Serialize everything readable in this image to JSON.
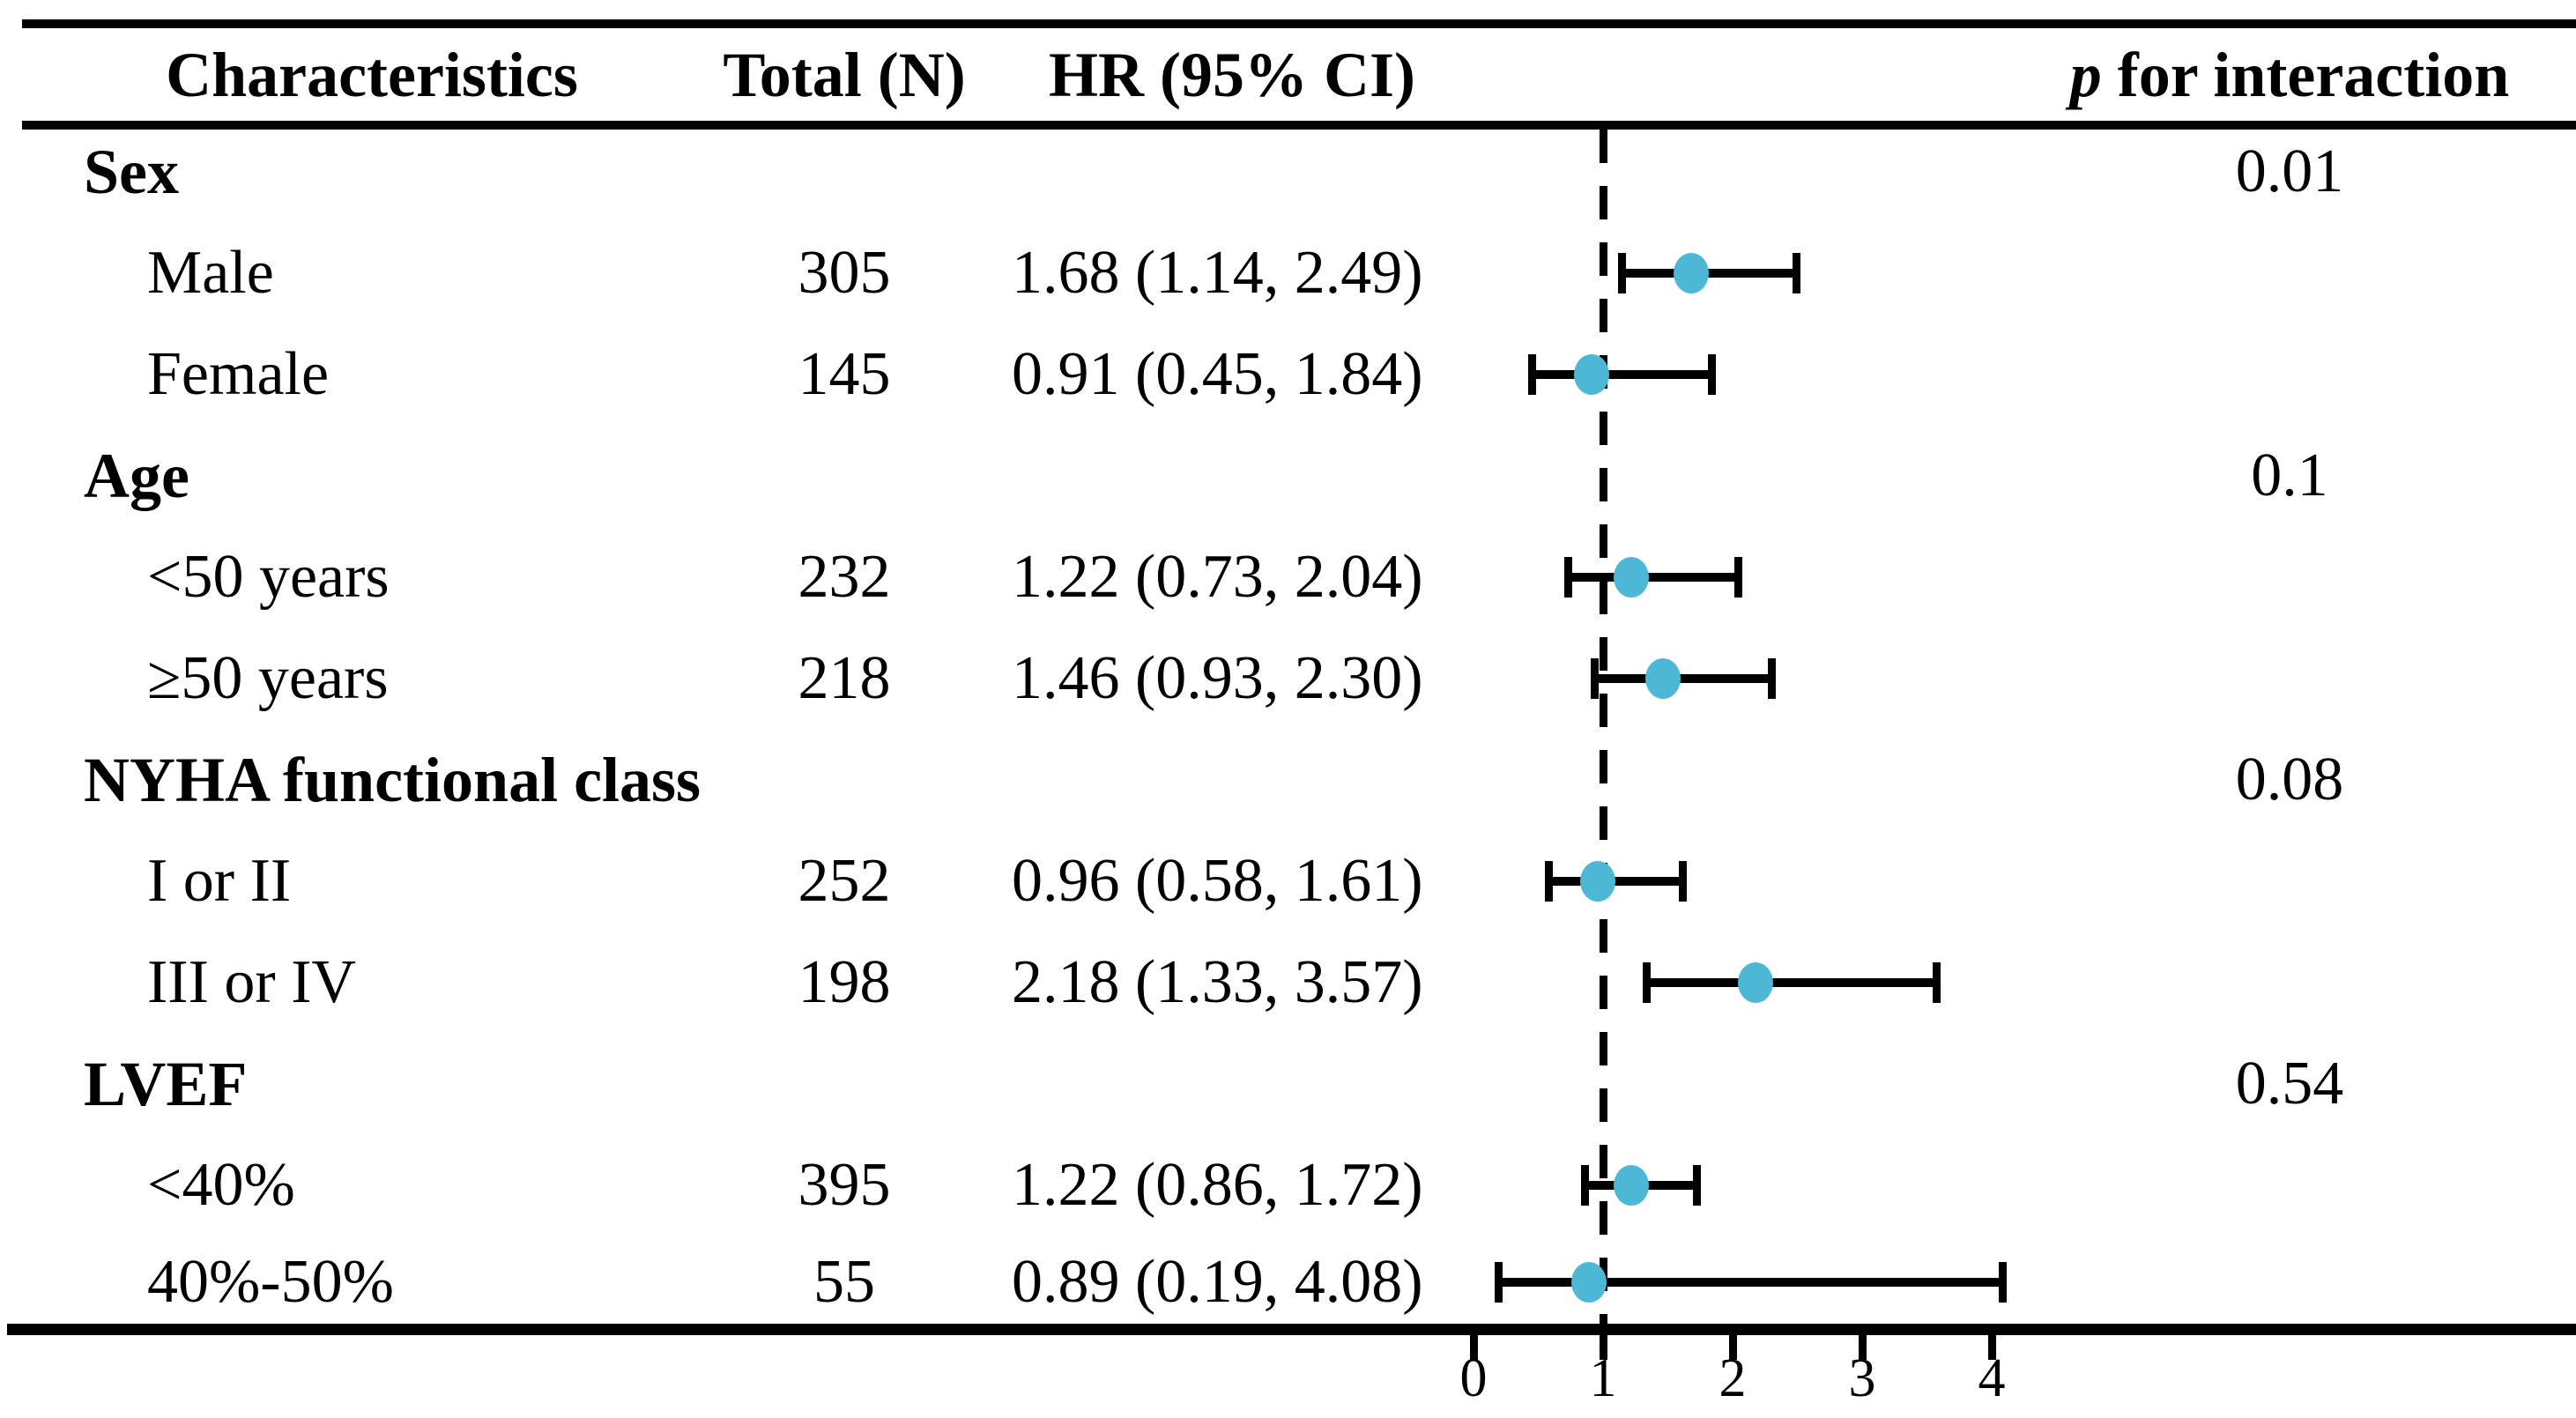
{
  "columns": {
    "characteristics": "Characteristics",
    "total": "Total (N)",
    "hr": "HR (95% CI)",
    "p_italic": "p",
    "p_rest": " for interaction"
  },
  "rows": [
    {
      "type": "group",
      "label": "Sex",
      "p": "0.01"
    },
    {
      "type": "leaf",
      "label": "Male",
      "total": "305",
      "hr_text": "1.68 (1.14, 2.49)"
    },
    {
      "type": "leaf",
      "label": "Female",
      "total": "145",
      "hr_text": "0.91 (0.45, 1.84)"
    },
    {
      "type": "group",
      "label": "Age",
      "p": "0.1"
    },
    {
      "type": "leaf",
      "label": "<50 years",
      "total": "232",
      "hr_text": "1.22 (0.73, 2.04)"
    },
    {
      "type": "leaf",
      "label": "≥50 years",
      "total": "218",
      "hr_text": "1.46 (0.93, 2.30)"
    },
    {
      "type": "group",
      "label": "NYHA functional class",
      "p": "0.08"
    },
    {
      "type": "leaf",
      "label": "I or II",
      "total": "252",
      "hr_text": "0.96 (0.58, 1.61)"
    },
    {
      "type": "leaf",
      "label": "III or IV",
      "total": "198",
      "hr_text": "2.18 (1.33, 3.57)"
    },
    {
      "type": "group",
      "label": "LVEF",
      "p": "0.54"
    },
    {
      "type": "leaf",
      "label": "<40%",
      "total": "395",
      "hr_text": "1.22 (0.86, 1.72)"
    },
    {
      "type": "leaf",
      "label": "40%-50%",
      "total": "55",
      "hr_text": "0.89 (0.19, 4.08)"
    }
  ],
  "chart_data": {
    "type": "forest",
    "title": "",
    "xlabel": "",
    "x_axis": {
      "ticks": [
        0,
        1,
        2,
        3,
        4
      ],
      "range": [
        0,
        4
      ],
      "reference_line": 1
    },
    "points": [
      {
        "subgroup": "Male",
        "total": 305,
        "hr": 1.68,
        "ci_low": 1.14,
        "ci_high": 2.49
      },
      {
        "subgroup": "Female",
        "total": 145,
        "hr": 0.91,
        "ci_low": 0.45,
        "ci_high": 1.84
      },
      {
        "subgroup": "<50 years",
        "total": 232,
        "hr": 1.22,
        "ci_low": 0.73,
        "ci_high": 2.04
      },
      {
        "subgroup": "≥50 years",
        "total": 218,
        "hr": 1.46,
        "ci_low": 0.93,
        "ci_high": 2.3
      },
      {
        "subgroup": "I or II",
        "total": 252,
        "hr": 0.96,
        "ci_low": 0.58,
        "ci_high": 1.61
      },
      {
        "subgroup": "III or IV",
        "total": 198,
        "hr": 2.18,
        "ci_low": 1.33,
        "ci_high": 3.57
      },
      {
        "subgroup": "<40%",
        "total": 395,
        "hr": 1.22,
        "ci_low": 0.86,
        "ci_high": 1.72
      },
      {
        "subgroup": "40%-50%",
        "total": 55,
        "hr": 0.89,
        "ci_low": 0.19,
        "ci_high": 4.08
      }
    ],
    "groups": [
      {
        "name": "Sex",
        "p_for_interaction": "0.01"
      },
      {
        "name": "Age",
        "p_for_interaction": "0.1"
      },
      {
        "name": "NYHA functional class",
        "p_for_interaction": "0.08"
      },
      {
        "name": "LVEF",
        "p_for_interaction": "0.54"
      }
    ],
    "marker_color": "#4DB8D5",
    "line_color": "#000000"
  }
}
